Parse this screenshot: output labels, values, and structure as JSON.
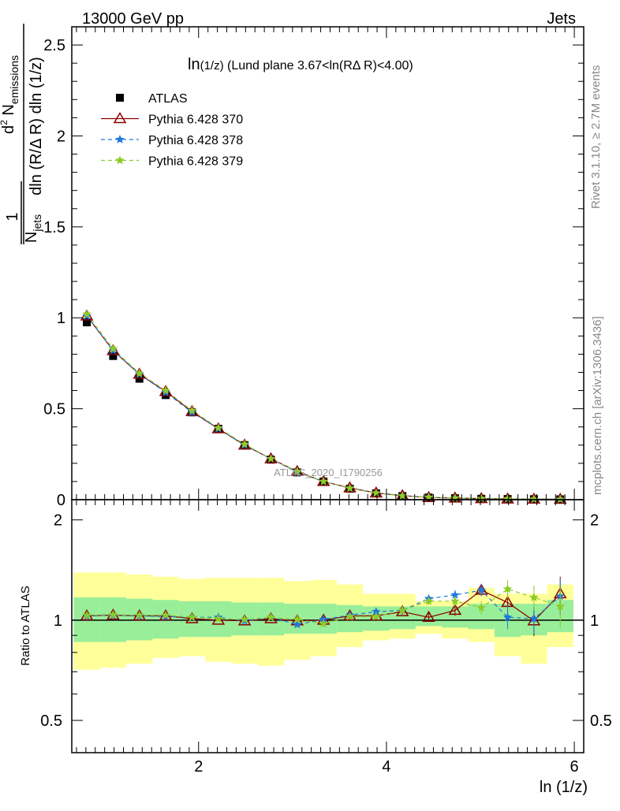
{
  "header": {
    "left": "13000 GeV pp",
    "right": "Jets"
  },
  "plot_title": {
    "main": "ln",
    "sub": "(1/z)",
    "rest": " (Lund plane 3.67<ln(RΔ R)<4.00)"
  },
  "side_labels": {
    "rivet": "Rivet 3.1.10, ≥ 2.7M events",
    "mcplots": "mcplots.cern.ch [arXiv:1306.3436]"
  },
  "watermark": "ATLAS_2020_I1790256",
  "legend": [
    {
      "label": "ATLAS",
      "marker": "square",
      "color": "#000000"
    },
    {
      "label": "Pythia 6.428 370",
      "marker": "triangle",
      "color": "#8b0000"
    },
    {
      "label": "Pythia 6.428 378",
      "marker": "star",
      "color": "#1e78dc"
    },
    {
      "label": "Pythia 6.428 379",
      "marker": "star",
      "color": "#8ccc28"
    }
  ],
  "ylabel_main": {
    "frac_num_1": "1",
    "frac_den_1a": "N",
    "frac_den_1b": "jets",
    "frac_num_2a": "d",
    "frac_num_2b": "2",
    "frac_num_2c": " N",
    "frac_num_2d": "emissions",
    "frac_den_2": "dln (R/Δ R) dln (1/z)"
  },
  "ylabel_ratio": "Ratio to ATLAS",
  "xlabel": "ln (1/z)",
  "main_ticks": [
    "0",
    "0.5",
    "1",
    "1.5",
    "2",
    "2.5"
  ],
  "ratio_ticks": [
    "0.5",
    "1",
    "2"
  ],
  "x_ticks": [
    "2",
    "4",
    "6"
  ],
  "chart_data": {
    "type": "line",
    "title": "ln(1/z) (Lund plane 3.67<ln(RΔ R)<4.00)",
    "xlabel": "ln (1/z)",
    "ylabel": "1/N_jets d²N_emissions / dln(R/ΔR) dln(1/z)",
    "xlim": [
      0.65,
      6.1
    ],
    "ylim": [
      0,
      2.6
    ],
    "ratio_ylim": [
      0.4,
      2.3
    ],
    "x": [
      0.81,
      1.09,
      1.37,
      1.65,
      1.93,
      2.21,
      2.49,
      2.77,
      3.05,
      3.33,
      3.61,
      3.89,
      4.17,
      4.45,
      4.73,
      5.01,
      5.29,
      5.57,
      5.85
    ],
    "series": [
      {
        "name": "ATLAS",
        "values": [
          0.975,
          0.79,
          0.665,
          0.575,
          0.48,
          0.39,
          0.3,
          0.22,
          0.15,
          0.1,
          0.06,
          0.035,
          0.02,
          0.012,
          0.008,
          0.005,
          0.004,
          0.003,
          0.002
        ]
      },
      {
        "name": "Pythia 6.428 370",
        "values": [
          1.01,
          0.82,
          0.69,
          0.595,
          0.485,
          0.39,
          0.3,
          0.225,
          0.155,
          0.1,
          0.065,
          0.037,
          0.022,
          0.012,
          0.009,
          0.006,
          0.004,
          0.003,
          0.002
        ]
      },
      {
        "name": "Pythia 6.428 378",
        "values": [
          1.01,
          0.82,
          0.69,
          0.59,
          0.48,
          0.39,
          0.3,
          0.225,
          0.15,
          0.1,
          0.063,
          0.037,
          0.022,
          0.013,
          0.009,
          0.006,
          0.004,
          0.003,
          0.002
        ]
      },
      {
        "name": "Pythia 6.428 379",
        "values": [
          1.02,
          0.83,
          0.695,
          0.6,
          0.49,
          0.395,
          0.305,
          0.225,
          0.155,
          0.1,
          0.063,
          0.036,
          0.021,
          0.013,
          0.009,
          0.006,
          0.005,
          0.003,
          0.002
        ]
      }
    ],
    "ratio_series": [
      {
        "name": "Pythia 6.428 370",
        "values": [
          1.03,
          1.035,
          1.03,
          1.03,
          1.01,
          1.0,
          0.995,
          1.01,
          0.995,
          1.0,
          1.03,
          1.03,
          1.06,
          1.02,
          1.07,
          1.23,
          1.13,
          0.995,
          1.2
        ],
        "errors": [
          0.005,
          0.005,
          0.005,
          0.005,
          0.005,
          0.005,
          0.005,
          0.005,
          0.01,
          0.01,
          0.01,
          0.015,
          0.02,
          0.03,
          0.04,
          0.05,
          0.08,
          0.1,
          0.15
        ]
      },
      {
        "name": "Pythia 6.428 378",
        "values": [
          1.03,
          1.035,
          1.03,
          1.025,
          1.02,
          1.02,
          0.995,
          1.02,
          0.97,
          1.005,
          1.035,
          1.06,
          1.07,
          1.16,
          1.19,
          1.23,
          1.02,
          1.01,
          1.18
        ],
        "errors": [
          0.005,
          0.005,
          0.005,
          0.005,
          0.005,
          0.005,
          0.005,
          0.005,
          0.01,
          0.01,
          0.01,
          0.015,
          0.02,
          0.03,
          0.04,
          0.05,
          0.08,
          0.1,
          0.15
        ]
      },
      {
        "name": "Pythia 6.428 379",
        "values": [
          1.035,
          1.04,
          1.035,
          1.035,
          1.02,
          1.01,
          1.005,
          1.02,
          1.005,
          0.975,
          1.025,
          1.025,
          1.07,
          1.14,
          1.14,
          1.09,
          1.24,
          1.17,
          1.1
        ],
        "errors": [
          0.005,
          0.005,
          0.005,
          0.005,
          0.005,
          0.005,
          0.005,
          0.005,
          0.01,
          0.01,
          0.01,
          0.015,
          0.02,
          0.03,
          0.04,
          0.05,
          0.08,
          0.1,
          0.15
        ]
      }
    ],
    "bands": {
      "edges": [
        0.67,
        0.95,
        1.23,
        1.51,
        1.79,
        2.07,
        2.35,
        2.63,
        2.91,
        3.19,
        3.47,
        3.75,
        4.03,
        4.31,
        4.59,
        4.87,
        5.15,
        5.43,
        5.71,
        5.99
      ],
      "green_low": [
        0.86,
        0.86,
        0.87,
        0.88,
        0.89,
        0.89,
        0.9,
        0.9,
        0.91,
        0.91,
        0.92,
        0.93,
        0.94,
        0.96,
        0.95,
        0.94,
        0.89,
        0.9,
        0.92
      ],
      "green_high": [
        1.17,
        1.17,
        1.16,
        1.15,
        1.14,
        1.14,
        1.13,
        1.13,
        1.12,
        1.12,
        1.11,
        1.1,
        1.1,
        1.1,
        1.1,
        1.12,
        1.12,
        1.12,
        1.15
      ],
      "yellow_low": [
        0.71,
        0.72,
        0.74,
        0.77,
        0.78,
        0.75,
        0.74,
        0.73,
        0.76,
        0.78,
        0.83,
        0.87,
        0.88,
        0.91,
        0.88,
        0.86,
        0.78,
        0.74,
        0.83
      ],
      "yellow_high": [
        1.39,
        1.39,
        1.37,
        1.35,
        1.33,
        1.34,
        1.34,
        1.34,
        1.31,
        1.32,
        1.28,
        1.2,
        1.2,
        1.14,
        1.14,
        1.25,
        1.2,
        1.2,
        1.28
      ]
    },
    "grid": false,
    "legend_position": "top-left"
  }
}
